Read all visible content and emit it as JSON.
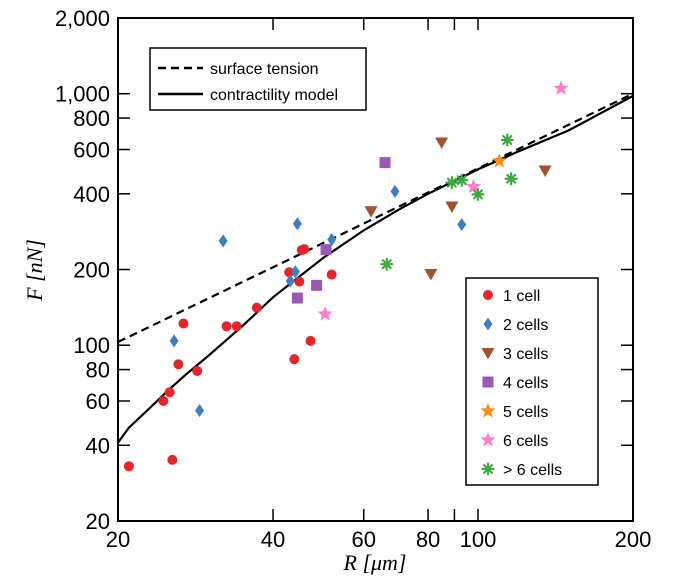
{
  "chart_data": {
    "type": "scatter",
    "title": "",
    "xlabel": "R [μm]",
    "ylabel": "F [nN]",
    "xscale": "log",
    "yscale": "log",
    "xlim": [
      20,
      200
    ],
    "ylim": [
      20,
      2000
    ],
    "x_ticks": [
      {
        "value": 20,
        "label": "20"
      },
      {
        "value": 40,
        "label": "40"
      },
      {
        "value": 60,
        "label": "60"
      },
      {
        "value": 80,
        "label": "80"
      },
      {
        "value": 90,
        "label": ""
      },
      {
        "value": 100,
        "label": "100"
      },
      {
        "value": 200,
        "label": "200"
      }
    ],
    "y_ticks": [
      {
        "value": 20,
        "label": "20"
      },
      {
        "value": 40,
        "label": "40"
      },
      {
        "value": 60,
        "label": "60"
      },
      {
        "value": 80,
        "label": "80"
      },
      {
        "value": 100,
        "label": "100"
      },
      {
        "value": 200,
        "label": "200"
      },
      {
        "value": 400,
        "label": "400"
      },
      {
        "value": 600,
        "label": "600"
      },
      {
        "value": 800,
        "label": "800"
      },
      {
        "value": 1000,
        "label": "1,000"
      },
      {
        "value": 2000,
        "label": "2,000"
      }
    ],
    "grid": false,
    "lines": [
      {
        "name": "surface tension",
        "style": "dashed",
        "color": "#000000",
        "x": [
          20,
          200
        ],
        "y": [
          103,
          1000
        ]
      },
      {
        "name": "contractility model",
        "style": "solid",
        "color": "#000000",
        "x": [
          20,
          21,
          23,
          25,
          27,
          30,
          35,
          40,
          50,
          60,
          70,
          80,
          100,
          120,
          150,
          200
        ],
        "y": [
          41,
          47,
          56,
          66,
          76,
          91,
          120,
          155,
          222,
          286,
          345,
          400,
          500,
          590,
          715,
          980
        ]
      }
    ],
    "series": [
      {
        "name": "1 cell",
        "marker": "circle",
        "color": "#e3262b",
        "points": [
          [
            21,
            33
          ],
          [
            24.5,
            60
          ],
          [
            25.2,
            65
          ],
          [
            25.5,
            35
          ],
          [
            26.2,
            84
          ],
          [
            26.8,
            122
          ],
          [
            28.5,
            79
          ],
          [
            32.5,
            119
          ],
          [
            34,
            119
          ],
          [
            37.2,
            141
          ],
          [
            43,
            195
          ],
          [
            44,
            88
          ],
          [
            45,
            179
          ],
          [
            45.5,
            239
          ],
          [
            46,
            241
          ],
          [
            47.3,
            104
          ],
          [
            52,
            191
          ]
        ]
      },
      {
        "name": "2 cells",
        "marker": "diamond",
        "color": "#3f7fbf",
        "points": [
          [
            25.7,
            104
          ],
          [
            28.8,
            55
          ],
          [
            32,
            260
          ],
          [
            43.2,
            180
          ],
          [
            44.2,
            196
          ],
          [
            44.6,
            304
          ],
          [
            52,
            263
          ],
          [
            69,
            409
          ],
          [
            93,
            302
          ]
        ]
      },
      {
        "name": "3 cells",
        "marker": "triangle-down",
        "color": "#a0522d",
        "points": [
          [
            62,
            341
          ],
          [
            81,
            192
          ],
          [
            85,
            640
          ],
          [
            89,
            356
          ],
          [
            135,
            495
          ]
        ]
      },
      {
        "name": "4 cells",
        "marker": "square",
        "color": "#9b59b6",
        "points": [
          [
            44.6,
            154
          ],
          [
            48.6,
            173
          ],
          [
            50.7,
            240
          ],
          [
            66,
            532
          ]
        ]
      },
      {
        "name": "5 cells",
        "marker": "star",
        "color": "#ff8c1a",
        "points": [
          [
            110,
            540
          ]
        ]
      },
      {
        "name": "6 cells",
        "marker": "star",
        "color": "#ff7fc8",
        "points": [
          [
            50.5,
            133
          ],
          [
            98,
            427
          ],
          [
            145,
            1050
          ]
        ]
      },
      {
        "name": "> 6 cells",
        "marker": "asterisk",
        "color": "#3fa83f",
        "points": [
          [
            66.5,
            210
          ],
          [
            89,
            443
          ],
          [
            93,
            453
          ],
          [
            100,
            398
          ],
          [
            114,
            655
          ],
          [
            116,
            459
          ]
        ]
      }
    ],
    "line_legend_position": "top-left",
    "marker_legend_position": "bottom-right"
  }
}
